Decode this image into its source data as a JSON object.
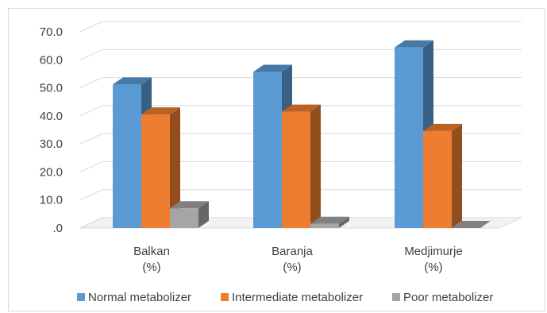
{
  "chart_data": {
    "type": "bar",
    "title": "",
    "xlabel": "",
    "ylabel": "",
    "categories": [
      [
        "Balkan",
        "(%)"
      ],
      [
        "Baranja",
        "(%)"
      ],
      [
        "Medjimurje",
        "(%)"
      ]
    ],
    "series": [
      {
        "name": "Normal metabolizer",
        "color": "#5b9bd5",
        "values": [
          51.2,
          55.7,
          64.4
        ]
      },
      {
        "name": "Intermediate metabolizer",
        "color": "#ed7d31",
        "values": [
          40.5,
          41.5,
          34.6
        ]
      },
      {
        "name": "Poor metabolizer",
        "color": "#a5a5a5",
        "values": [
          7.0,
          1.5,
          0.0
        ]
      }
    ],
    "ylim": [
      0,
      70
    ],
    "yticks": [
      ".0",
      "10.0",
      "20.0",
      "30.0",
      "40.0",
      "50.0",
      "60.0",
      "70.0"
    ],
    "grid": true,
    "legend": "bottom",
    "style": "3d-clustered-column"
  }
}
